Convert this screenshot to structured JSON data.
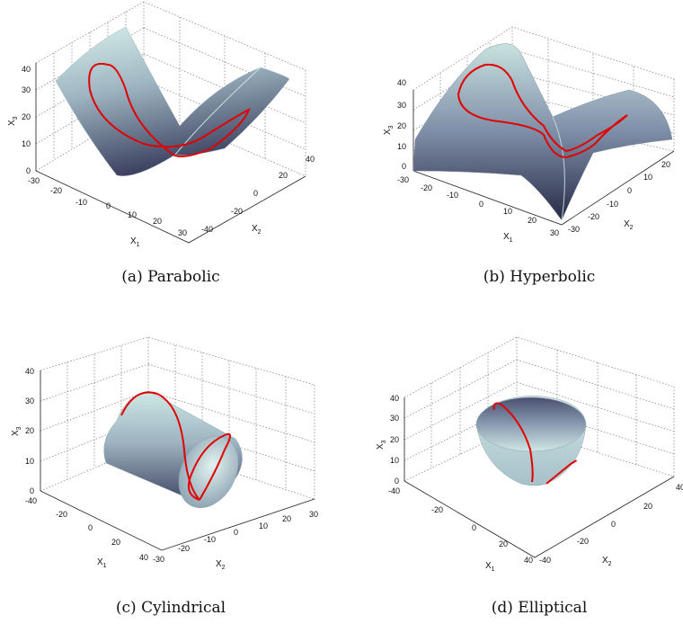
{
  "figure": {
    "captions": [
      "(a)  Parabolic",
      "(b)  Hyperbolic",
      "(c)  Cylindrical",
      "(d)  Elliptical"
    ]
  },
  "chart_data": [
    {
      "type": "surface3d",
      "surface": "parabolic",
      "caption": "(a)  Parabolic",
      "xlabel": "X",
      "xlabel_sub": "1",
      "ylabel": "X",
      "ylabel_sub": "2",
      "zlabel": "X",
      "zlabel_sub": "3",
      "x_ticks": [
        "-30",
        "-20",
        "-10",
        "0",
        "10",
        "20",
        "30"
      ],
      "y_ticks": [
        "-40",
        "-20",
        "0",
        "20",
        "40"
      ],
      "z_ticks": [
        "0",
        "10",
        "20",
        "30",
        "40"
      ],
      "xlim": [
        -30,
        30
      ],
      "ylim": [
        -40,
        40
      ],
      "zlim": [
        0,
        40
      ],
      "curve_color": "#e00000",
      "grid": true
    },
    {
      "type": "surface3d",
      "surface": "hyperbolic",
      "caption": "(b)  Hyperbolic",
      "xlabel": "X",
      "xlabel_sub": "1",
      "ylabel": "X",
      "ylabel_sub": "2",
      "zlabel": "X",
      "zlabel_sub": "3",
      "x_ticks": [
        "-30",
        "-20",
        "-10",
        "0",
        "10",
        "20",
        "30"
      ],
      "y_ticks": [
        "-30",
        "-20",
        "-10",
        "0",
        "10",
        "20"
      ],
      "z_ticks": [
        "0",
        "10",
        "20",
        "30",
        "40"
      ],
      "xlim": [
        -30,
        30
      ],
      "ylim": [
        -30,
        30
      ],
      "zlim": [
        0,
        40
      ],
      "curve_color": "#e00000",
      "grid": true
    },
    {
      "type": "surface3d",
      "surface": "cylindrical",
      "caption": "(c)  Cylindrical",
      "xlabel": "X",
      "xlabel_sub": "1",
      "ylabel": "X",
      "ylabel_sub": "2",
      "zlabel": "X",
      "zlabel_sub": "3",
      "x_ticks": [
        "-40",
        "-20",
        "0",
        "20",
        "40"
      ],
      "y_ticks": [
        "-30",
        "-20",
        "-10",
        "0",
        "10",
        "20",
        "30"
      ],
      "z_ticks": [
        "0",
        "10",
        "20",
        "30",
        "40"
      ],
      "xlim": [
        -40,
        40
      ],
      "ylim": [
        -30,
        30
      ],
      "zlim": [
        0,
        40
      ],
      "curve_color": "#e00000",
      "grid": true
    },
    {
      "type": "surface3d",
      "surface": "elliptical",
      "caption": "(d)  Elliptical",
      "xlabel": "X",
      "xlabel_sub": "1",
      "ylabel": "X",
      "ylabel_sub": "2",
      "zlabel": "X",
      "zlabel_sub": "3",
      "x_ticks": [
        "-40",
        "-20",
        "0",
        "20",
        "40"
      ],
      "y_ticks": [
        "-40",
        "-20",
        "0",
        "20",
        "40"
      ],
      "z_ticks": [
        "0",
        "10",
        "20",
        "30",
        "40"
      ],
      "xlim": [
        -40,
        40
      ],
      "ylim": [
        -40,
        40
      ],
      "zlim": [
        0,
        40
      ],
      "curve_color": "#e00000",
      "grid": true
    }
  ]
}
